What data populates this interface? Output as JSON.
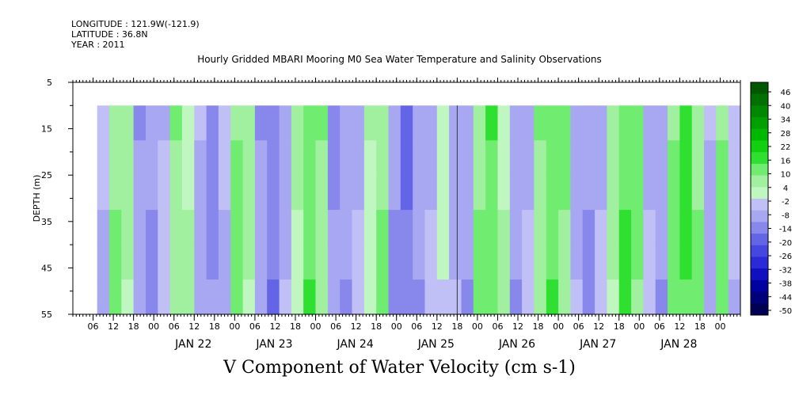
{
  "header": {
    "longitude": "LONGITUDE : 121.9W(-121.9)",
    "latitude": "LATITUDE : 36.8N",
    "year": "YEAR : 2011"
  },
  "chart_data": {
    "type": "heatmap",
    "title": "Hourly Gridded MBARI Mooring M0 Sea Water Temperature and Salinity Observations",
    "xlabel": "V Component of Water Velocity (cm s-1)",
    "ylabel": "DEPTH (m)",
    "y_range": [
      5,
      55
    ],
    "y_inverted": true,
    "y_ticks": [
      5,
      15,
      25,
      35,
      45,
      55
    ],
    "x_range": [
      "2011-01-21T00:00",
      "2011-01-29T06:00"
    ],
    "x_hour_ticks": [
      "06",
      "12",
      "18",
      "00",
      "06",
      "12",
      "18",
      "00",
      "06",
      "12",
      "18",
      "00",
      "06",
      "12",
      "18",
      "00",
      "06",
      "12",
      "18",
      "00",
      "06",
      "12",
      "18",
      "00",
      "06",
      "12",
      "18",
      "00",
      "06",
      "12",
      "18",
      "00"
    ],
    "x_day_labels": [
      "JAN 22",
      "JAN 23",
      "JAN 24",
      "JAN 25",
      "JAN 26",
      "JAN 27",
      "JAN 28"
    ],
    "data_depth_range": [
      10,
      55
    ],
    "colorbar": {
      "levels": [
        -50,
        -44,
        -38,
        -32,
        -26,
        -20,
        -14,
        -8,
        -2,
        4,
        10,
        16,
        22,
        28,
        34,
        40,
        46
      ],
      "labels": [
        "46",
        "40",
        "34",
        "28",
        "22",
        "16",
        "10",
        "4",
        "-2",
        "-8",
        "-14",
        "-20",
        "-26",
        "-32",
        "-38",
        "-44",
        "-50"
      ],
      "neg_colors": [
        "#000055",
        "#00007a",
        "#0000a0",
        "#1010c0",
        "#2a2ad8",
        "#4646e0",
        "#6464e6",
        "#8888ec",
        "#a8a8f2",
        "#c0c0f6"
      ],
      "pos_colors": [
        "#c0f6c0",
        "#a0f0a0",
        "#70ec70",
        "#30e030",
        "#10d010",
        "#00b800",
        "#00a000",
        "#008800",
        "#007000",
        "#005800"
      ]
    },
    "velocity_columns_day_offset_and_value": [
      [
        0.3,
        -6
      ],
      [
        0.45,
        12
      ],
      [
        0.6,
        8
      ],
      [
        0.75,
        -10
      ],
      [
        0.9,
        -12
      ],
      [
        1.05,
        -4
      ],
      [
        1.2,
        10
      ],
      [
        1.35,
        6
      ],
      [
        1.5,
        -8
      ],
      [
        1.65,
        -14
      ],
      [
        1.8,
        -6
      ],
      [
        1.95,
        14
      ],
      [
        2.1,
        8
      ],
      [
        2.25,
        -10
      ],
      [
        2.4,
        -16
      ],
      [
        2.55,
        -8
      ],
      [
        2.7,
        6
      ],
      [
        2.85,
        16
      ],
      [
        3.0,
        10
      ],
      [
        3.15,
        -12
      ],
      [
        3.3,
        -10
      ],
      [
        3.45,
        -6
      ],
      [
        3.6,
        4
      ],
      [
        3.75,
        12
      ],
      [
        3.9,
        -12
      ],
      [
        4.05,
        -18
      ],
      [
        4.2,
        -10
      ],
      [
        4.35,
        -6
      ],
      [
        4.5,
        2
      ],
      [
        4.65,
        -8
      ],
      [
        4.8,
        -10
      ],
      [
        4.95,
        12
      ],
      [
        5.1,
        16
      ],
      [
        5.25,
        6
      ],
      [
        5.4,
        -10
      ],
      [
        5.55,
        -6
      ],
      [
        5.7,
        10
      ],
      [
        5.85,
        16
      ],
      [
        6.0,
        12
      ],
      [
        6.15,
        -8
      ],
      [
        6.3,
        -12
      ],
      [
        6.45,
        -6
      ],
      [
        6.6,
        8
      ],
      [
        6.75,
        18
      ],
      [
        6.9,
        14
      ],
      [
        7.05,
        -6
      ],
      [
        7.2,
        -10
      ],
      [
        7.35,
        14
      ],
      [
        7.5,
        20
      ],
      [
        7.65,
        12
      ],
      [
        7.8,
        -8
      ],
      [
        7.95,
        14
      ],
      [
        8.1,
        -4
      ]
    ]
  }
}
